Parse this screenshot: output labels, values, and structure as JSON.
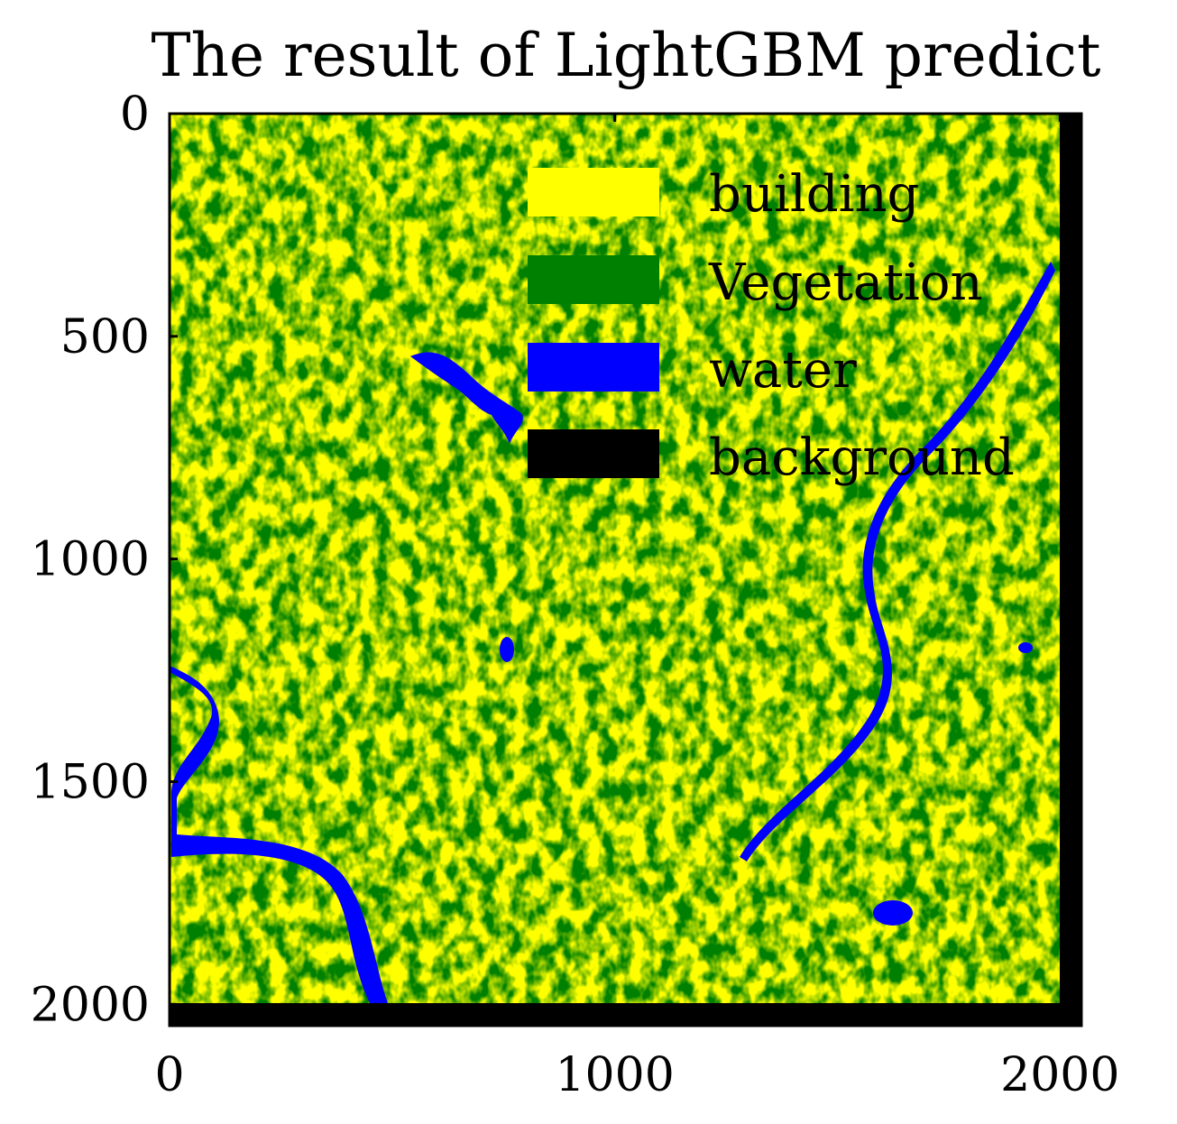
{
  "chart_data": {
    "type": "heatmap",
    "title": "The result of LightGBM predict",
    "xlabel": "",
    "ylabel": "",
    "xlim": [
      0,
      2048
    ],
    "ylim": [
      2048,
      0
    ],
    "x_ticks": [
      {
        "value": 0,
        "label": "0"
      },
      {
        "value": 1000,
        "label": "1000"
      },
      {
        "value": 2000,
        "label": "2000"
      }
    ],
    "y_ticks": [
      {
        "value": 0,
        "label": "0"
      },
      {
        "value": 500,
        "label": "500"
      },
      {
        "value": 1000,
        "label": "1000"
      },
      {
        "value": 1500,
        "label": "1500"
      },
      {
        "value": 2000,
        "label": "2000"
      }
    ],
    "grid": false,
    "legend_position": "top-center",
    "classes": [
      {
        "name": "building",
        "color": "#ffff00"
      },
      {
        "name": "Vegetation",
        "color": "#008000"
      },
      {
        "name": "water",
        "color": "#0000ff"
      },
      {
        "name": "background",
        "color": "#000000"
      }
    ],
    "image_extent": {
      "width": 2000,
      "height": 2000
    }
  }
}
